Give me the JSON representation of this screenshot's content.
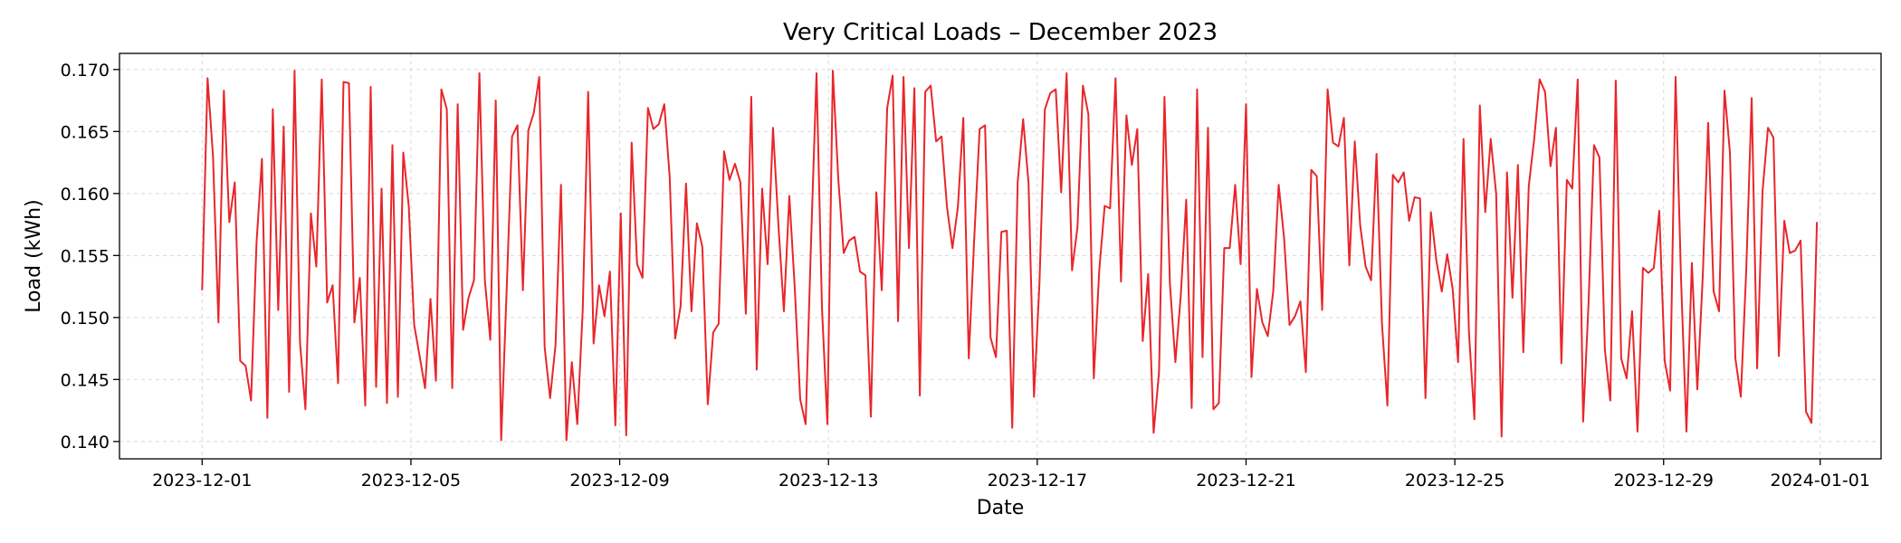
{
  "chart_data": {
    "type": "line",
    "title": "Very Critical Loads – December 2023",
    "xlabel": "Date",
    "ylabel": "Load (kWh)",
    "grid": true,
    "line_color": "#e8262b",
    "x_range": [
      "2023-11-29T10:00",
      "2024-01-02T04:00"
    ],
    "ylim": [
      0.1386,
      0.1713
    ],
    "y_ticks": [
      "0.140",
      "0.145",
      "0.150",
      "0.155",
      "0.160",
      "0.165",
      "0.170"
    ],
    "x_ticks": [
      "2023-12-01",
      "2023-12-05",
      "2023-12-09",
      "2023-12-13",
      "2023-12-17",
      "2023-12-21",
      "2023-12-25",
      "2023-12-29",
      "2024-01-01"
    ],
    "series": [
      {
        "name": "Very Critical Loads",
        "start": "2023-12-01T00:00",
        "interval_hours": 2.5,
        "values": [
          0.1522,
          0.1693,
          0.163,
          0.1496,
          0.1683,
          0.1577,
          0.1609,
          0.1465,
          0.1461,
          0.1433,
          0.156,
          0.1628,
          0.1419,
          0.1668,
          0.1506,
          0.1654,
          0.144,
          0.1699,
          0.148,
          0.1426,
          0.1584,
          0.1541,
          0.1692,
          0.1512,
          0.1526,
          0.1447,
          0.169,
          0.1689,
          0.1496,
          0.1532,
          0.1429,
          0.1686,
          0.1444,
          0.1604,
          0.1431,
          0.1639,
          0.1436,
          0.1633,
          0.159,
          0.1494,
          0.1469,
          0.1443,
          0.1515,
          0.1449,
          0.1684,
          0.1668,
          0.1443,
          0.1672,
          0.149,
          0.1516,
          0.153,
          0.1697,
          0.153,
          0.1482,
          0.1675,
          0.1401,
          0.1521,
          0.1646,
          0.1655,
          0.1522,
          0.1651,
          0.1665,
          0.1694,
          0.1476,
          0.1435,
          0.1478,
          0.1607,
          0.1401,
          0.1464,
          0.1414,
          0.1506,
          0.1682,
          0.1479,
          0.1526,
          0.1501,
          0.1537,
          0.1413,
          0.1584,
          0.1405,
          0.1641,
          0.1543,
          0.1532,
          0.1669,
          0.1652,
          0.1656,
          0.1672,
          0.1613,
          0.1483,
          0.1509,
          0.1608,
          0.1505,
          0.1576,
          0.1557,
          0.143,
          0.1488,
          0.1495,
          0.1634,
          0.1611,
          0.1624,
          0.1609,
          0.1503,
          0.1678,
          0.1458,
          0.1604,
          0.1543,
          0.1653,
          0.1574,
          0.1505,
          0.1598,
          0.1524,
          0.1434,
          0.1414,
          0.1562,
          0.1697,
          0.1508,
          0.1414,
          0.1699,
          0.1612,
          0.1552,
          0.1562,
          0.1565,
          0.1537,
          0.1534,
          0.142,
          0.1601,
          0.1522,
          0.1669,
          0.1695,
          0.1497,
          0.1694,
          0.1556,
          0.1685,
          0.1437,
          0.1682,
          0.1687,
          0.1642,
          0.1646,
          0.1589,
          0.1556,
          0.1589,
          0.1661,
          0.1467,
          0.1563,
          0.1652,
          0.1655,
          0.1484,
          0.1468,
          0.1569,
          0.157,
          0.1411,
          0.1609,
          0.166,
          0.1608,
          0.1436,
          0.1527,
          0.1668,
          0.1681,
          0.1684,
          0.1601,
          0.1697,
          0.1538,
          0.1573,
          0.1687,
          0.1664,
          0.1451,
          0.1538,
          0.159,
          0.1588,
          0.1693,
          0.1529,
          0.1663,
          0.1623,
          0.1652,
          0.1481,
          0.1535,
          0.1407,
          0.1456,
          0.1678,
          0.1527,
          0.1464,
          0.1518,
          0.1595,
          0.1427,
          0.1684,
          0.1468,
          0.1653,
          0.1426,
          0.1431,
          0.1556,
          0.1556,
          0.1607,
          0.1543,
          0.1672,
          0.1452,
          0.1523,
          0.1496,
          0.1485,
          0.1521,
          0.1607,
          0.1564,
          0.1494,
          0.1501,
          0.1513,
          0.1456,
          0.1619,
          0.1614,
          0.1506,
          0.1684,
          0.1641,
          0.1638,
          0.1661,
          0.1542,
          0.1642,
          0.1574,
          0.1541,
          0.153,
          0.1632,
          0.1495,
          0.1429,
          0.1615,
          0.1609,
          0.1617,
          0.1578,
          0.1597,
          0.1596,
          0.1435,
          0.1585,
          0.1546,
          0.1521,
          0.1551,
          0.1523,
          0.1464,
          0.1644,
          0.1488,
          0.1418,
          0.1671,
          0.1585,
          0.1644,
          0.16,
          0.1404,
          0.1617,
          0.1516,
          0.1623,
          0.1472,
          0.1606,
          0.1644,
          0.1692,
          0.1682,
          0.1622,
          0.1653,
          0.1463,
          0.1611,
          0.1604,
          0.1692,
          0.1416,
          0.1512,
          0.1639,
          0.1629,
          0.1474,
          0.1433,
          0.1691,
          0.1467,
          0.1451,
          0.1505,
          0.1408,
          0.154,
          0.1536,
          0.154,
          0.1586,
          0.1465,
          0.1441,
          0.1694,
          0.1532,
          0.1408,
          0.1544,
          0.1442,
          0.1533,
          0.1657,
          0.1521,
          0.1505,
          0.1683,
          0.1633,
          0.1467,
          0.1436,
          0.1538,
          0.1677,
          0.1459,
          0.1602,
          0.1653,
          0.1645,
          0.1469,
          0.1578,
          0.1552,
          0.1554,
          0.1562,
          0.1424,
          0.1415,
          0.1577
        ]
      }
    ]
  }
}
